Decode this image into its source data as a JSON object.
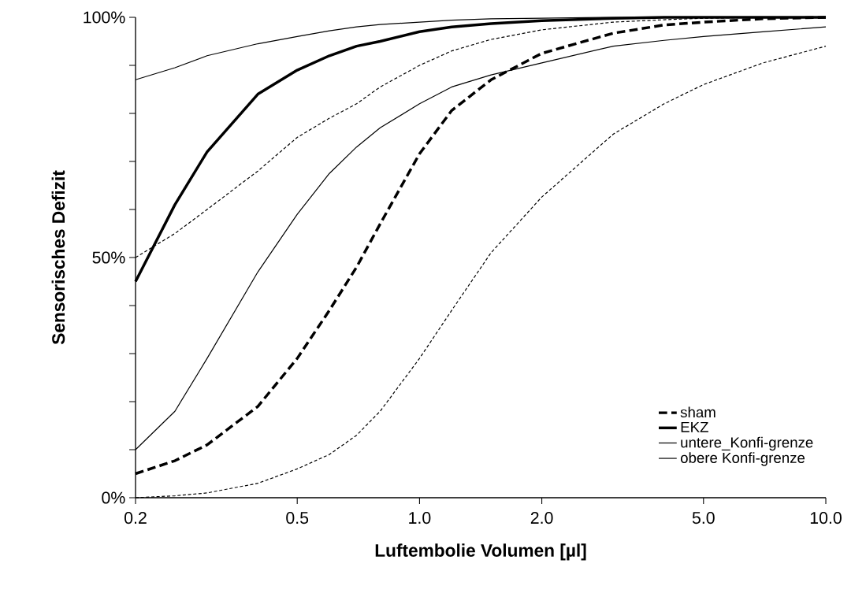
{
  "chart_data": {
    "type": "line",
    "xlabel": "Luftembolie Volumen [µl]",
    "ylabel": "Sensorisches Defizit",
    "log": "x",
    "grid": false,
    "legend": "bottom right",
    "xlim": [
      0.2,
      10
    ],
    "ylim": [
      0,
      100
    ],
    "xticks": [
      {
        "value": 0.2,
        "label": "0.2"
      },
      {
        "value": 0.5,
        "label": "0.5"
      },
      {
        "value": 1,
        "label": "1.0"
      },
      {
        "value": 2,
        "label": "2.0"
      },
      {
        "value": 5,
        "label": "5.0"
      },
      {
        "value": 10,
        "label": "10.0"
      }
    ],
    "yticks": [
      {
        "value": 0,
        "label": "0%"
      },
      {
        "value": 10,
        "label": null
      },
      {
        "value": 20,
        "label": null
      },
      {
        "value": 30,
        "label": null
      },
      {
        "value": 40,
        "label": null
      },
      {
        "value": 50,
        "label": "50%"
      },
      {
        "value": 60,
        "label": null
      },
      {
        "value": 70,
        "label": null
      },
      {
        "value": 80,
        "label": null
      },
      {
        "value": 90,
        "label": null
      },
      {
        "value": 100,
        "label": "100%"
      }
    ],
    "x": [
      0.2,
      0.25,
      0.3,
      0.4,
      0.5,
      0.6,
      0.7,
      0.8,
      1.0,
      1.2,
      1.5,
      2,
      3,
      4,
      5,
      7,
      10
    ],
    "series": [
      {
        "name": "sham",
        "color": "#000000",
        "line_style": "dashed",
        "values": [
          5,
          7.7,
          11,
          19,
          29,
          39,
          48,
          57,
          71.6,
          80.6,
          87,
          92.5,
          96.7,
          98.4,
          99,
          99.7,
          100
        ]
      },
      {
        "name": "EKZ",
        "color": "#000000",
        "line_style": "solid",
        "values": [
          45,
          61,
          72,
          84,
          89,
          92,
          94,
          95,
          97,
          98,
          98.7,
          99.3,
          99.8,
          100,
          100,
          100,
          100
        ]
      },
      {
        "name": "untere_Konfi-grenze",
        "color": "#000000",
        "line_style": "solid",
        "values": [
          10,
          18,
          29,
          47,
          59,
          67.5,
          73,
          77,
          82,
          85.5,
          88,
          90.5,
          94,
          95.2,
          96,
          97,
          98
        ]
      },
      {
        "name": "obere Konfi-grenze",
        "color": "#000000",
        "line_style": "solid",
        "values": [
          87,
          89.5,
          92,
          94.5,
          96,
          97.2,
          98,
          98.5,
          99,
          99.4,
          99.7,
          99.8,
          100,
          100,
          100,
          100,
          100
        ]
      },
      {
        "color": "#000000",
        "line_style": "dashed",
        "values": [
          50,
          55,
          60,
          68,
          75,
          79,
          82,
          85.5,
          90,
          93,
          95.4,
          97.4,
          99,
          99.5,
          99.8,
          100,
          100
        ]
      },
      {
        "color": "#000000",
        "line_style": "dashed",
        "values": [
          0,
          0.4,
          1,
          3,
          6,
          9,
          13,
          18,
          29,
          39,
          51,
          62.6,
          75.7,
          82,
          86,
          90.5,
          94
        ]
      }
    ]
  }
}
